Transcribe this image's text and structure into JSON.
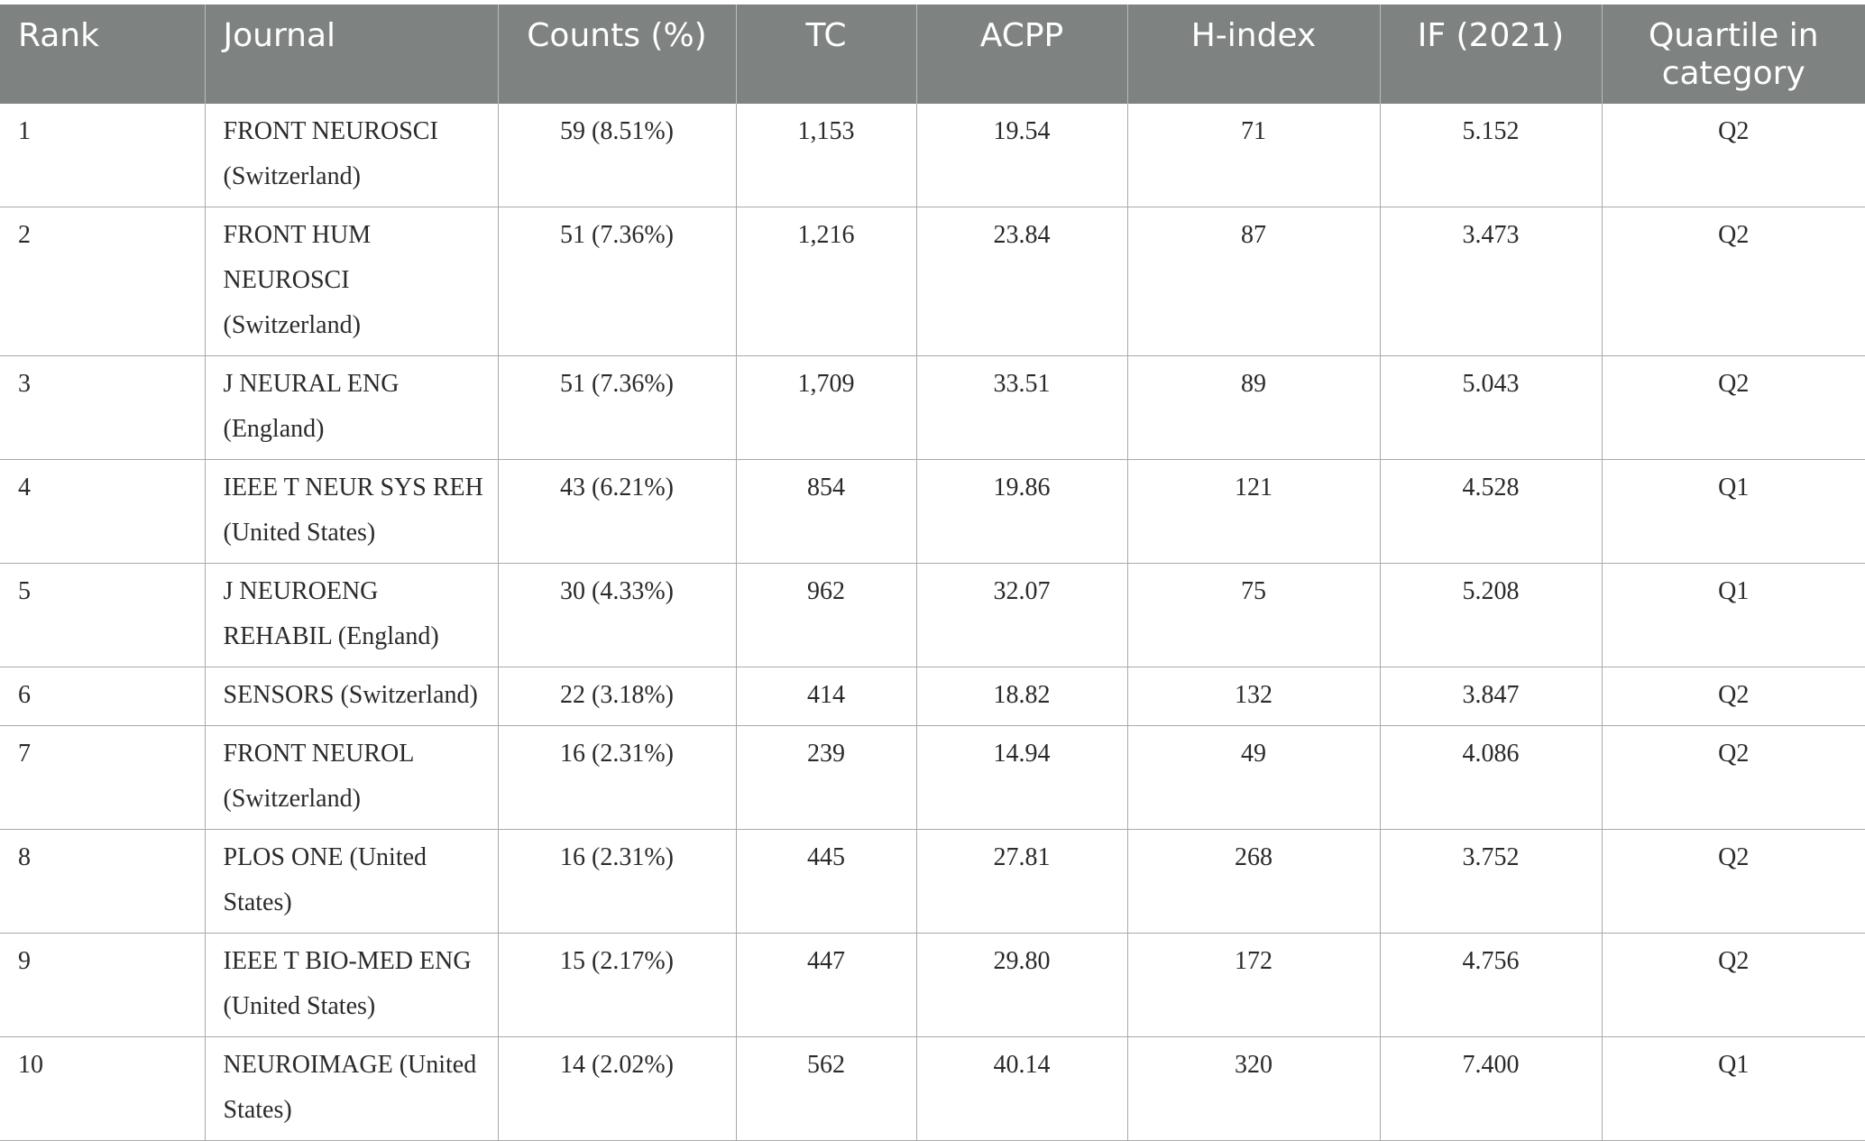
{
  "columns": [
    "Rank",
    "Journal",
    "Counts (%)",
    "TC",
    "ACPP",
    "H-index",
    "IF (2021)",
    "Quartile in category"
  ],
  "rows": [
    {
      "rank": "1",
      "journal": "FRONT NEUROSCI (Switzerland)",
      "counts": "59 (8.51%)",
      "tc": "1,153",
      "acpp": "19.54",
      "hindex": "71",
      "if": "5.152",
      "quartile": "Q2"
    },
    {
      "rank": "2",
      "journal": "FRONT HUM NEUROSCI (Switzerland)",
      "counts": "51 (7.36%)",
      "tc": "1,216",
      "acpp": "23.84",
      "hindex": "87",
      "if": "3.473",
      "quartile": "Q2"
    },
    {
      "rank": "3",
      "journal": "J NEURAL ENG (England)",
      "counts": "51 (7.36%)",
      "tc": "1,709",
      "acpp": "33.51",
      "hindex": "89",
      "if": "5.043",
      "quartile": "Q2"
    },
    {
      "rank": "4",
      "journal": "IEEE T NEUR SYS REH (United States)",
      "counts": "43 (6.21%)",
      "tc": "854",
      "acpp": "19.86",
      "hindex": "121",
      "if": "4.528",
      "quartile": "Q1"
    },
    {
      "rank": "5",
      "journal": "J NEUROENG REHABIL (England)",
      "counts": "30 (4.33%)",
      "tc": "962",
      "acpp": "32.07",
      "hindex": "75",
      "if": "5.208",
      "quartile": "Q1"
    },
    {
      "rank": "6",
      "journal": "SENSORS (Switzerland)",
      "counts": "22 (3.18%)",
      "tc": "414",
      "acpp": "18.82",
      "hindex": "132",
      "if": "3.847",
      "quartile": "Q2"
    },
    {
      "rank": "7",
      "journal": "FRONT NEUROL (Switzerland)",
      "counts": "16 (2.31%)",
      "tc": "239",
      "acpp": "14.94",
      "hindex": "49",
      "if": "4.086",
      "quartile": "Q2"
    },
    {
      "rank": "8",
      "journal": "PLOS ONE (United States)",
      "counts": "16 (2.31%)",
      "tc": "445",
      "acpp": "27.81",
      "hindex": "268",
      "if": "3.752",
      "quartile": "Q2"
    },
    {
      "rank": "9",
      "journal": "IEEE T BIO-MED ENG (United States)",
      "counts": "15 (2.17%)",
      "tc": "447",
      "acpp": "29.80",
      "hindex": "172",
      "if": "4.756",
      "quartile": "Q2"
    },
    {
      "rank": "10",
      "journal": "NEUROIMAGE (United States)",
      "counts": "14 (2.02%)",
      "tc": "562",
      "acpp": "40.14",
      "hindex": "320",
      "if": "7.400",
      "quartile": "Q1"
    }
  ]
}
